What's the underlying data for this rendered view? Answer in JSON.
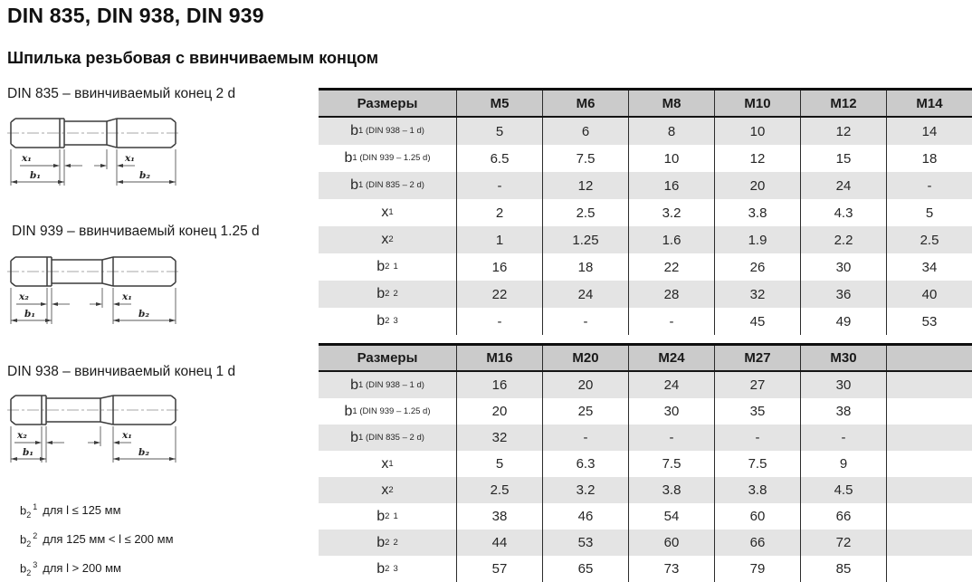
{
  "page": {
    "title": "DIN 835, DIN 938, DIN 939",
    "subtitle": "Шпилька резьбовая с ввинчиваемым концом"
  },
  "drawings": [
    {
      "label": "DIN 835 – ввинчиваемый конец 2 d",
      "dim_x_left": "x₁",
      "dim_x_right": "x₁",
      "dim_b_left": "b₁",
      "dim_b_right": "b₂"
    },
    {
      "label": "DIN 939 – ввинчиваемый конец 1.25 d",
      "dim_x_left": "x₂",
      "dim_x_right": "x₁",
      "dim_b_left": "b₁",
      "dim_b_right": "b₂"
    },
    {
      "label": "DIN 938 – ввинчиваемый конец 1 d",
      "dim_x_left": "x₂",
      "dim_x_right": "x₁",
      "dim_b_left": "b₁",
      "dim_b_right": "b₂"
    }
  ],
  "footnotes": [
    {
      "main": "b",
      "sub": "2",
      "sup": "1",
      "text": "для l ≤ 125 мм"
    },
    {
      "main": "b",
      "sub": "2",
      "sup": "2",
      "text": "для 125 мм < l ≤ 200 мм"
    },
    {
      "main": "b",
      "sub": "2",
      "sup": "3",
      "text": "для l > 200 мм"
    }
  ],
  "tables": [
    {
      "header": [
        "Размеры",
        "M5",
        "M6",
        "M8",
        "M10",
        "M12",
        "M14"
      ],
      "rows": [
        {
          "label": {
            "main": "b",
            "sub": "1 (DIN 938 – 1 d)",
            "sup": ""
          },
          "cells": [
            "5",
            "6",
            "8",
            "10",
            "12",
            "14"
          ]
        },
        {
          "label": {
            "main": "b",
            "sub": "1 (DIN 939 – 1.25 d)",
            "sup": ""
          },
          "cells": [
            "6.5",
            "7.5",
            "10",
            "12",
            "15",
            "18"
          ]
        },
        {
          "label": {
            "main": "b",
            "sub": "1 (DIN 835 – 2 d)",
            "sup": ""
          },
          "cells": [
            "-",
            "12",
            "16",
            "20",
            "24",
            "-"
          ]
        },
        {
          "label": {
            "main": "x",
            "sub": "1",
            "sup": ""
          },
          "cells": [
            "2",
            "2.5",
            "3.2",
            "3.8",
            "4.3",
            "5"
          ]
        },
        {
          "label": {
            "main": "x",
            "sub": "2",
            "sup": ""
          },
          "cells": [
            "1",
            "1.25",
            "1.6",
            "1.9",
            "2.2",
            "2.5"
          ]
        },
        {
          "label": {
            "main": "b",
            "sub": "2",
            "sup": "1"
          },
          "cells": [
            "16",
            "18",
            "22",
            "26",
            "30",
            "34"
          ]
        },
        {
          "label": {
            "main": "b",
            "sub": "2",
            "sup": "2"
          },
          "cells": [
            "22",
            "24",
            "28",
            "32",
            "36",
            "40"
          ]
        },
        {
          "label": {
            "main": "b",
            "sub": "2",
            "sup": "3"
          },
          "cells": [
            "-",
            "-",
            "-",
            "45",
            "49",
            "53"
          ]
        }
      ]
    },
    {
      "header": [
        "Размеры",
        "M16",
        "M20",
        "M24",
        "M27",
        "M30",
        ""
      ],
      "rows": [
        {
          "label": {
            "main": "b",
            "sub": "1 (DIN 938 – 1 d)",
            "sup": ""
          },
          "cells": [
            "16",
            "20",
            "24",
            "27",
            "30",
            ""
          ]
        },
        {
          "label": {
            "main": "b",
            "sub": "1 (DIN 939 – 1.25 d)",
            "sup": ""
          },
          "cells": [
            "20",
            "25",
            "30",
            "35",
            "38",
            ""
          ]
        },
        {
          "label": {
            "main": "b",
            "sub": "1 (DIN 835 – 2 d)",
            "sup": ""
          },
          "cells": [
            "32",
            "-",
            "-",
            "-",
            "-",
            ""
          ]
        },
        {
          "label": {
            "main": "x",
            "sub": "1",
            "sup": ""
          },
          "cells": [
            "5",
            "6.3",
            "7.5",
            "7.5",
            "9",
            ""
          ]
        },
        {
          "label": {
            "main": "x",
            "sub": "2",
            "sup": ""
          },
          "cells": [
            "2.5",
            "3.2",
            "3.8",
            "3.8",
            "4.5",
            ""
          ]
        },
        {
          "label": {
            "main": "b",
            "sub": "2",
            "sup": "1"
          },
          "cells": [
            "38",
            "46",
            "54",
            "60",
            "66",
            ""
          ]
        },
        {
          "label": {
            "main": "b",
            "sub": "2",
            "sup": "2"
          },
          "cells": [
            "44",
            "53",
            "60",
            "66",
            "72",
            ""
          ]
        },
        {
          "label": {
            "main": "b",
            "sub": "2",
            "sup": "3"
          },
          "cells": [
            "57",
            "65",
            "73",
            "79",
            "85",
            ""
          ]
        }
      ]
    }
  ],
  "colors": {
    "header_bg": "#cbcbcb",
    "band_bg": "#e4e4e4",
    "border": "#141414",
    "text": "#1f1f1f"
  }
}
